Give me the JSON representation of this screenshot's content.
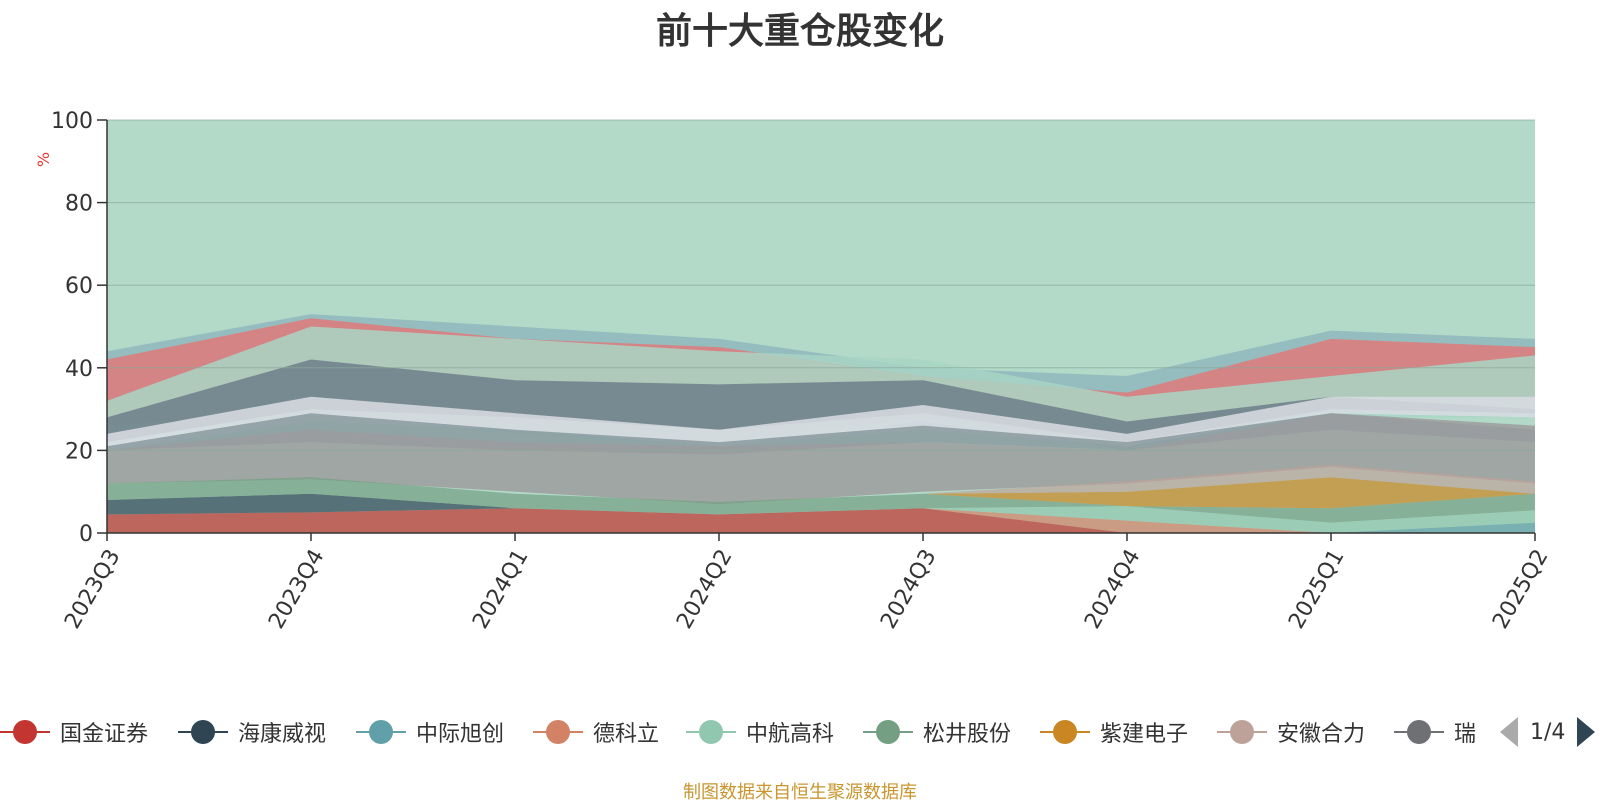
{
  "chart_data": {
    "type": "area",
    "title": "前十大重仓股变化",
    "ylabel": "%",
    "ylim": [
      0,
      100
    ],
    "yticks": [
      0,
      20,
      40,
      60,
      80,
      100
    ],
    "categories": [
      "2023Q3",
      "2023Q4",
      "2024Q1",
      "2024Q2",
      "2024Q3",
      "2024Q4",
      "2025Q1",
      "2025Q2"
    ],
    "series": [
      {
        "name": "国金证券",
        "color": "#c23531",
        "values": [
          4.5,
          5,
          6,
          4.5,
          6,
          0,
          0,
          0
        ]
      },
      {
        "name": "海康威视",
        "color": "#2f4554",
        "values": [
          3.5,
          4.5,
          0,
          0,
          0,
          0,
          0,
          0
        ]
      },
      {
        "name": "中际旭创",
        "color": "#61a0a8",
        "values": [
          0,
          0,
          0,
          0,
          0,
          0,
          0,
          2.5
        ]
      },
      {
        "name": "德科立",
        "color": "#d48265",
        "values": [
          0,
          0,
          0,
          0,
          0,
          3,
          0,
          0
        ]
      },
      {
        "name": "中航高科",
        "color": "#91c7ae",
        "values": [
          0,
          0,
          0,
          0,
          0,
          3.5,
          2.5,
          3
        ]
      },
      {
        "name": "松井股份",
        "color": "#749f83",
        "values": [
          4,
          4,
          3.5,
          3,
          3.5,
          0,
          3.5,
          4
        ]
      },
      {
        "name": "紫建电子",
        "color": "#ca8622",
        "values": [
          0,
          0,
          0,
          0,
          0,
          3.5,
          7.5,
          0
        ]
      },
      {
        "name": "安徽合力",
        "color": "#bda29a",
        "values": [
          0,
          0,
          0,
          0,
          0,
          2.5,
          3,
          3
        ]
      }
    ]
  },
  "legend": {
    "items": [
      {
        "label": "国金证券",
        "color": "#c23531"
      },
      {
        "label": "海康威视",
        "color": "#2f4554"
      },
      {
        "label": "中际旭创",
        "color": "#61a0a8"
      },
      {
        "label": "德科立",
        "color": "#d48265"
      },
      {
        "label": "中航高科",
        "color": "#91c7ae"
      },
      {
        "label": "松井股份",
        "color": "#749f83"
      },
      {
        "label": "紫建电子",
        "color": "#ca8622"
      },
      {
        "label": "安徽合力",
        "color": "#bda29a"
      },
      {
        "label": "瑞",
        "color": "#6e7074"
      }
    ],
    "page": "1/4"
  },
  "source": "制图数据来自恒生聚源数据库"
}
